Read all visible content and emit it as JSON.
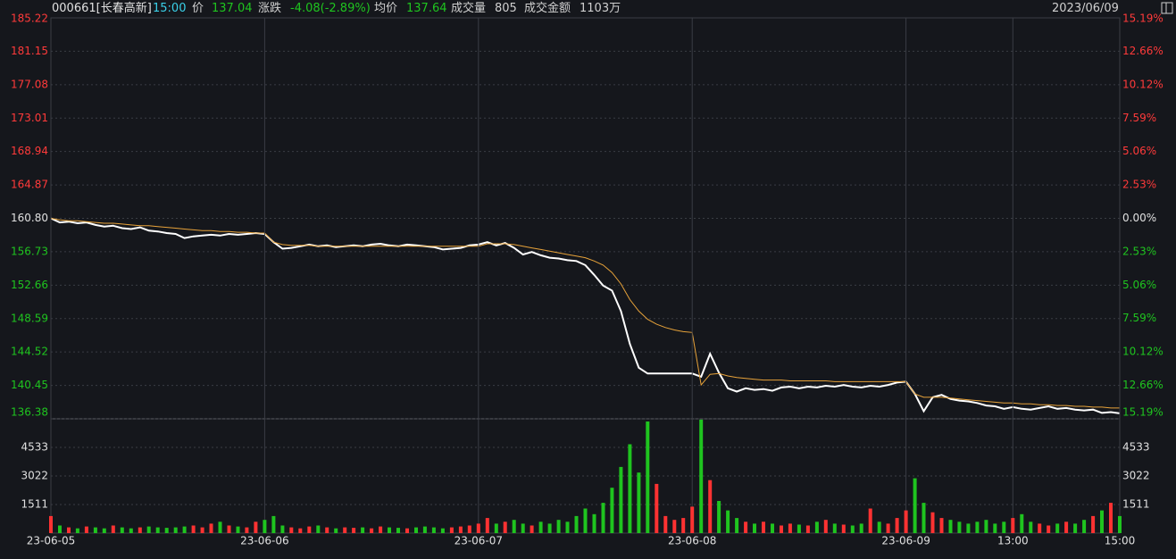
{
  "header": {
    "code": "000661[长春高新]",
    "time": "15:00",
    "price_label": "价",
    "price": "137.04",
    "change_label": "涨跌",
    "change": "-4.08(-2.89%)",
    "avg_label": "均价",
    "avg": "137.64",
    "volume_label": "成交量",
    "volume": "805",
    "amount_label": "成交金额",
    "amount": "1103万",
    "date": "2023/06/09"
  },
  "chart_data": [
    {
      "type": "line",
      "x": [
        0,
        10,
        20,
        30,
        40,
        50,
        60,
        70,
        80,
        90,
        100,
        110,
        120,
        130,
        140,
        150,
        160,
        170,
        180,
        190,
        200,
        210,
        220,
        230,
        240,
        250,
        260,
        270,
        280,
        290,
        300,
        310,
        320,
        330,
        340,
        350,
        360,
        370,
        380,
        390,
        400,
        410,
        420,
        430,
        440,
        450,
        460,
        470,
        480,
        490,
        500,
        510,
        520,
        530,
        540,
        550,
        560,
        570,
        580,
        590,
        600,
        610,
        620,
        630,
        640,
        650,
        660,
        670,
        680,
        690,
        700,
        710,
        720,
        730,
        740,
        750,
        760,
        770,
        780,
        790,
        800,
        810,
        820,
        830,
        840,
        850,
        860,
        870,
        880,
        890,
        900,
        910,
        920,
        930,
        940,
        950,
        960,
        970,
        980,
        990,
        1000,
        1010,
        1020,
        1030,
        1040,
        1050,
        1060,
        1070,
        1080,
        1090,
        1100,
        1110,
        1120,
        1130,
        1140,
        1150,
        1160,
        1170,
        1180,
        1190,
        1200
      ],
      "xlim": [
        0,
        1200
      ],
      "series": [
        {
          "color": "#ffffff",
          "values": [
            160.8,
            160.3,
            160.4,
            160.2,
            160.3,
            160.0,
            159.8,
            159.9,
            159.6,
            159.5,
            159.7,
            159.3,
            159.2,
            159.0,
            158.9,
            158.4,
            158.6,
            158.7,
            158.8,
            158.7,
            158.9,
            158.8,
            158.9,
            159.0,
            158.9,
            157.9,
            157.1,
            157.2,
            157.4,
            157.6,
            157.4,
            157.5,
            157.3,
            157.4,
            157.5,
            157.4,
            157.6,
            157.7,
            157.5,
            157.4,
            157.6,
            157.5,
            157.4,
            157.3,
            157.0,
            157.1,
            157.2,
            157.5,
            157.6,
            157.9,
            157.5,
            157.8,
            157.2,
            156.4,
            156.7,
            156.3,
            156.0,
            155.9,
            155.7,
            155.6,
            155.1,
            153.9,
            152.6,
            152.0,
            149.5,
            145.5,
            142.6,
            141.9,
            141.9,
            141.9,
            141.9,
            141.9,
            141.9,
            141.5,
            144.3,
            142.0,
            140.1,
            139.7,
            140.1,
            139.9,
            140.0,
            139.8,
            140.2,
            140.3,
            140.1,
            140.3,
            140.2,
            140.4,
            140.3,
            140.5,
            140.3,
            140.2,
            140.4,
            140.3,
            140.5,
            140.8,
            140.9,
            139.4,
            137.3,
            139.0,
            139.3,
            138.8,
            138.6,
            138.5,
            138.3,
            138.0,
            137.9,
            137.6,
            137.8,
            137.6,
            137.5,
            137.7,
            137.9,
            137.6,
            137.7,
            137.5,
            137.4,
            137.5,
            137.1,
            137.2,
            137.04
          ]
        },
        {
          "color": "#e8a33a",
          "values": [
            160.8,
            160.6,
            160.5,
            160.5,
            160.4,
            160.3,
            160.2,
            160.2,
            160.1,
            160.0,
            159.9,
            159.9,
            159.8,
            159.7,
            159.6,
            159.5,
            159.4,
            159.3,
            159.3,
            159.2,
            159.2,
            159.1,
            159.1,
            159.0,
            159.0,
            157.9,
            157.6,
            157.5,
            157.5,
            157.5,
            157.4,
            157.4,
            157.4,
            157.4,
            157.4,
            157.4,
            157.4,
            157.4,
            157.4,
            157.4,
            157.4,
            157.4,
            157.4,
            157.4,
            157.4,
            157.4,
            157.4,
            157.4,
            157.4,
            157.7,
            157.7,
            157.7,
            157.6,
            157.4,
            157.2,
            157.0,
            156.8,
            156.6,
            156.4,
            156.2,
            156.0,
            155.6,
            155.1,
            154.2,
            152.8,
            150.9,
            149.5,
            148.5,
            147.9,
            147.5,
            147.2,
            147.0,
            146.9,
            140.5,
            141.8,
            141.9,
            141.6,
            141.4,
            141.3,
            141.2,
            141.1,
            141.1,
            141.1,
            141.0,
            141.0,
            141.0,
            141.0,
            141.0,
            140.9,
            140.9,
            140.9,
            140.9,
            140.9,
            140.9,
            140.9,
            140.9,
            140.9,
            139.4,
            139.0,
            139.0,
            139.0,
            138.9,
            138.8,
            138.7,
            138.6,
            138.5,
            138.4,
            138.3,
            138.3,
            138.2,
            138.2,
            138.1,
            138.1,
            138.0,
            138.0,
            137.9,
            137.9,
            137.8,
            137.8,
            137.7,
            137.7
          ]
        }
      ],
      "ylim": [
        136.38,
        185.22
      ],
      "yticks": [
        185.22,
        181.15,
        177.08,
        173.01,
        168.94,
        164.87,
        {
          "value": 160.8,
          "label": "160.80"
        },
        156.73,
        152.66,
        148.59,
        144.52,
        140.45,
        136.38
      ],
      "y2lim": [
        -15.19,
        15.19
      ],
      "y2ticks": [
        {
          "value": 15.19,
          "label": "15.19%"
        },
        {
          "value": 12.66,
          "label": "12.66%"
        },
        {
          "value": 10.12,
          "label": "10.12%"
        },
        {
          "value": 7.59,
          "label": "7.59%"
        },
        {
          "value": 5.06,
          "label": "5.06%"
        },
        {
          "value": 2.53,
          "label": "2.53%"
        },
        {
          "value": 0,
          "label": "0.00%"
        },
        {
          "value": -2.53,
          "label": "2.53%"
        },
        {
          "value": -5.06,
          "label": "5.06%"
        },
        {
          "value": -7.59,
          "label": "7.59%"
        },
        {
          "value": -10.12,
          "label": "10.12%"
        },
        {
          "value": -12.66,
          "label": "12.66%"
        },
        {
          "value": -15.19,
          "label": "15.19%"
        }
      ],
      "grid": true
    },
    {
      "type": "bar",
      "x": [
        0,
        10,
        20,
        30,
        40,
        50,
        60,
        70,
        80,
        90,
        100,
        110,
        120,
        130,
        140,
        150,
        160,
        170,
        180,
        190,
        200,
        210,
        220,
        230,
        240,
        250,
        260,
        270,
        280,
        290,
        300,
        310,
        320,
        330,
        340,
        350,
        360,
        370,
        380,
        390,
        400,
        410,
        420,
        430,
        440,
        450,
        460,
        470,
        480,
        490,
        500,
        510,
        520,
        530,
        540,
        550,
        560,
        570,
        580,
        590,
        600,
        610,
        620,
        630,
        640,
        650,
        660,
        670,
        680,
        690,
        700,
        710,
        720,
        730,
        740,
        750,
        760,
        770,
        780,
        790,
        800,
        810,
        820,
        830,
        840,
        850,
        860,
        870,
        880,
        890,
        900,
        910,
        920,
        930,
        940,
        950,
        960,
        970,
        980,
        990,
        1000,
        1010,
        1020,
        1030,
        1040,
        1050,
        1060,
        1070,
        1080,
        1090,
        1100,
        1110,
        1120,
        1130,
        1140,
        1150,
        1160,
        1170,
        1180,
        1190,
        1200
      ],
      "xlim": [
        0,
        1200
      ],
      "xticks": [
        {
          "value": 0,
          "label": "23-06-05"
        },
        {
          "value": 240,
          "label": "23-06-06"
        },
        {
          "value": 480,
          "label": "23-06-07"
        },
        {
          "value": 720,
          "label": "23-06-08"
        },
        {
          "value": 960,
          "label": "23-06-09"
        },
        {
          "value": 1080,
          "label": "13:00"
        },
        {
          "value": 1200,
          "label": "15:00"
        }
      ],
      "values": [
        900,
        400,
        300,
        250,
        350,
        300,
        250,
        400,
        300,
        250,
        300,
        350,
        300,
        280,
        300,
        350,
        400,
        300,
        500,
        600,
        400,
        350,
        300,
        600,
        700,
        900,
        400,
        300,
        250,
        350,
        400,
        300,
        250,
        300,
        280,
        300,
        250,
        350,
        300,
        280,
        250,
        300,
        350,
        300,
        250,
        300,
        350,
        400,
        500,
        800,
        500,
        600,
        700,
        500,
        400,
        600,
        500,
        700,
        600,
        900,
        1300,
        1000,
        1600,
        2400,
        3500,
        4700,
        3200,
        5900,
        2600,
        900,
        700,
        800,
        1400,
        6000,
        2800,
        1700,
        1200,
        800,
        600,
        500,
        600,
        500,
        400,
        500,
        450,
        400,
        600,
        700,
        500,
        450,
        400,
        500,
        1300,
        600,
        500,
        800,
        1200,
        2900,
        1600,
        1100,
        800,
        700,
        600,
        500,
        600,
        700,
        500,
        600,
        800,
        1000,
        600,
        500,
        400,
        500,
        600,
        500,
        700,
        900,
        1200,
        1600,
        900
      ],
      "up_color": "#ff3232",
      "down_color": "#1fc41f",
      "ylim": [
        0,
        6044
      ],
      "yticks": [
        1511,
        3022,
        4533
      ],
      "grid": true
    }
  ]
}
